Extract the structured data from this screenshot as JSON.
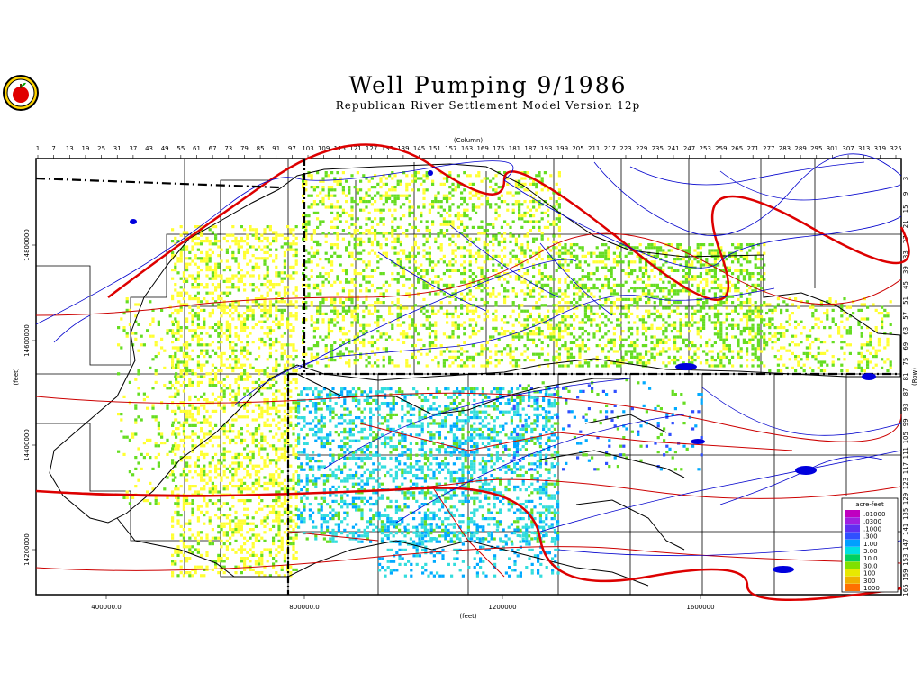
{
  "title": "Well Pumping   9/1986",
  "subtitle": "Republican River Settlement Model Version 12p",
  "axes": {
    "column_label": "(Column)",
    "row_label": "(Row)",
    "x_label": "(feet)",
    "y_label": "(feet)",
    "column_ticks": [
      "1",
      "7",
      "13",
      "19",
      "25",
      "31",
      "37",
      "43",
      "49",
      "55",
      "61",
      "67",
      "73",
      "79",
      "85",
      "91",
      "97",
      "103",
      "109",
      "115",
      "121",
      "127",
      "133",
      "139",
      "145",
      "151",
      "157",
      "163",
      "169",
      "175",
      "181",
      "187",
      "193",
      "199",
      "205",
      "211",
      "217",
      "223",
      "229",
      "235",
      "241",
      "247",
      "253",
      "259",
      "265",
      "271",
      "277",
      "283",
      "289",
      "295",
      "301",
      "307",
      "313",
      "319",
      "325"
    ],
    "row_ticks": [
      "3",
      "9",
      "15",
      "21",
      "27",
      "33",
      "39",
      "45",
      "51",
      "57",
      "63",
      "69",
      "75",
      "81",
      "87",
      "93",
      "99",
      "105",
      "111",
      "117",
      "123",
      "129",
      "135",
      "141",
      "147",
      "153",
      "159",
      "165"
    ],
    "x_ticks": [
      "400000.0",
      "800000.0",
      "1200000",
      "1600000"
    ],
    "y_ticks": [
      "14800000",
      "14600000",
      "14400000",
      "14200000"
    ]
  },
  "legend": {
    "title": "acre-feet",
    "entries": [
      {
        "label": ".01000",
        "color": "#c000c0"
      },
      {
        "label": ".0300",
        "color": "#a020e0"
      },
      {
        "label": ".1000",
        "color": "#6030f0"
      },
      {
        "label": ".300",
        "color": "#3050ff"
      },
      {
        "label": "1.00",
        "color": "#00a0ff"
      },
      {
        "label": "3.00",
        "color": "#00e0e0"
      },
      {
        "label": "10.0",
        "color": "#00d060"
      },
      {
        "label": "30.0",
        "color": "#80e000"
      },
      {
        "label": "100",
        "color": "#e8e800"
      },
      {
        "label": "300",
        "color": "#f0b000"
      },
      {
        "label": "1000",
        "color": "#ff7000"
      }
    ]
  },
  "colors": {
    "rivers": "#0000cc",
    "roads": "#cc0000",
    "state_line": "#000000",
    "pumping_low": "#ffff33",
    "pumping_mid": "#66dd22",
    "pumping_high": "#33dddd"
  }
}
